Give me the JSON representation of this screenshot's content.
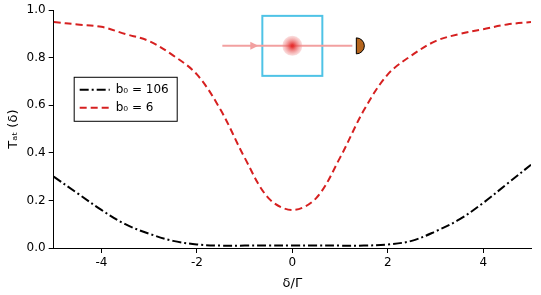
{
  "chart_data": {
    "type": "line",
    "x_label": "δ/Γ",
    "y_label": "Tₐₜ (δ)",
    "x": [
      -5,
      -4.5,
      -4,
      -3.5,
      -3,
      -2.5,
      -2,
      -1.5,
      -1,
      -0.5,
      0,
      0.5,
      1,
      1.5,
      2,
      2.5,
      3,
      3.5,
      4,
      4.5,
      5
    ],
    "series": [
      {
        "name": "b₀ = 106",
        "color": "#000000",
        "line_style": "dashdot",
        "values": [
          0.3,
          0.23,
          0.16,
          0.1,
          0.06,
          0.03,
          0.015,
          0.01,
          0.01,
          0.01,
          0.01,
          0.01,
          0.01,
          0.01,
          0.015,
          0.03,
          0.07,
          0.12,
          0.19,
          0.27,
          0.35
        ]
      },
      {
        "name": "b₀ = 6",
        "color": "#d62020",
        "line_style": "dashed",
        "values": [
          0.95,
          0.94,
          0.93,
          0.9,
          0.87,
          0.81,
          0.73,
          0.58,
          0.38,
          0.21,
          0.16,
          0.21,
          0.38,
          0.58,
          0.73,
          0.81,
          0.87,
          0.9,
          0.92,
          0.94,
          0.95
        ]
      }
    ],
    "xlim": [
      -5,
      5
    ],
    "xticks": [
      -4,
      -2,
      0,
      2,
      4
    ],
    "ylim": [
      0,
      1
    ],
    "yticks": [
      {
        "value": 0,
        "label": "0.0"
      },
      0.2,
      0.4,
      0.6,
      0.8,
      {
        "value": 1,
        "label": "1.0"
      }
    ],
    "grid": false,
    "legend": "left"
  }
}
